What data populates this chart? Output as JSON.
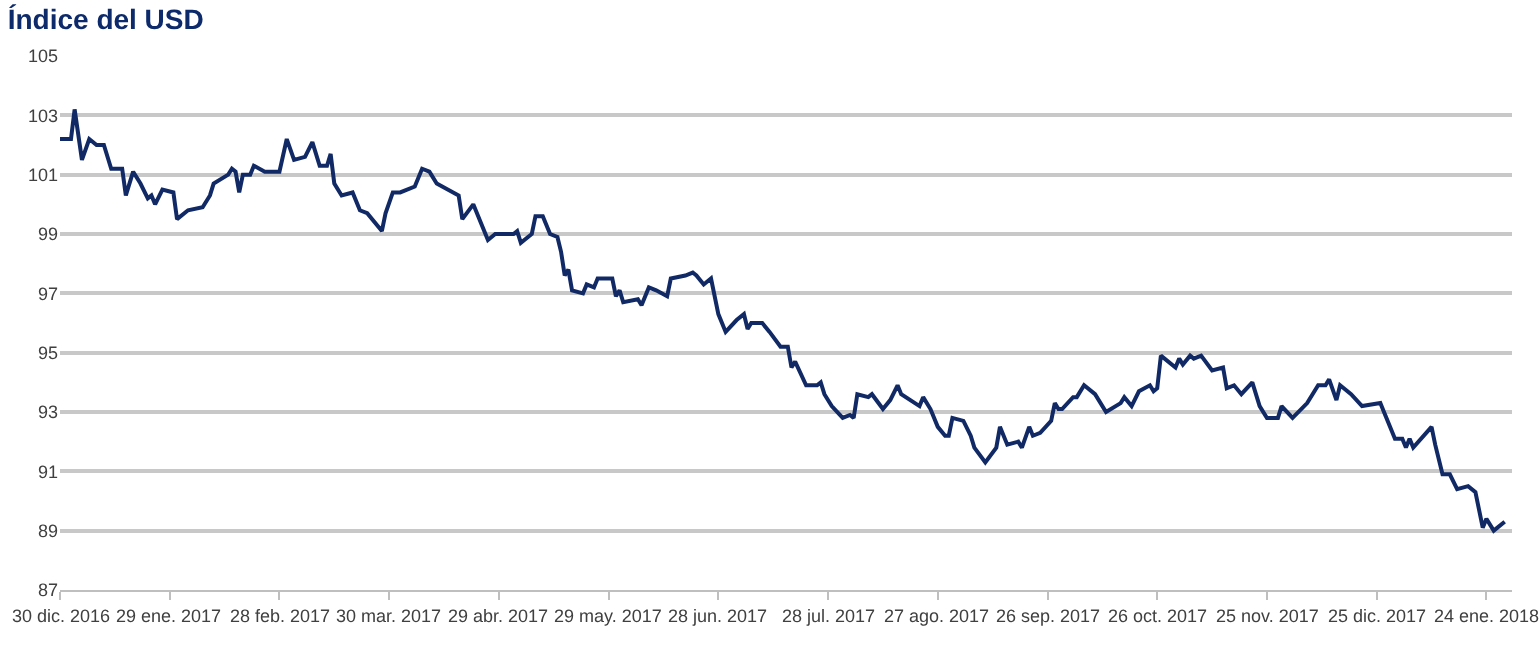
{
  "chart_data": {
    "type": "line",
    "title": "Índice del USD",
    "x": [
      "2016-12-30",
      "2017-01-02",
      "2017-01-03",
      "2017-01-05",
      "2017-01-07",
      "2017-01-09",
      "2017-01-11",
      "2017-01-13",
      "2017-01-16",
      "2017-01-17",
      "2017-01-19",
      "2017-01-21",
      "2017-01-23",
      "2017-01-24",
      "2017-01-25",
      "2017-01-27",
      "2017-01-30",
      "2017-01-31",
      "2017-02-03",
      "2017-02-07",
      "2017-02-09",
      "2017-02-10",
      "2017-02-14",
      "2017-02-15",
      "2017-02-16",
      "2017-02-17",
      "2017-02-18",
      "2017-02-20",
      "2017-02-21",
      "2017-02-24",
      "2017-02-28",
      "2017-03-02",
      "2017-03-04",
      "2017-03-07",
      "2017-03-09",
      "2017-03-11",
      "2017-03-13",
      "2017-03-14",
      "2017-03-15",
      "2017-03-17",
      "2017-03-20",
      "2017-03-22",
      "2017-03-24",
      "2017-03-28",
      "2017-03-29",
      "2017-03-31",
      "2017-04-02",
      "2017-04-06",
      "2017-04-08",
      "2017-04-10",
      "2017-04-12",
      "2017-04-15",
      "2017-04-18",
      "2017-04-19",
      "2017-04-22",
      "2017-04-26",
      "2017-04-28",
      "2017-05-03",
      "2017-05-04",
      "2017-05-05",
      "2017-05-08",
      "2017-05-09",
      "2017-05-11",
      "2017-05-13",
      "2017-05-15",
      "2017-05-16",
      "2017-05-17",
      "2017-05-18",
      "2017-05-19",
      "2017-05-22",
      "2017-05-23",
      "2017-05-25",
      "2017-05-26",
      "2017-05-30",
      "2017-05-31",
      "2017-06-01",
      "2017-06-02",
      "2017-06-06",
      "2017-06-07",
      "2017-06-09",
      "2017-06-11",
      "2017-06-14",
      "2017-06-15",
      "2017-06-19",
      "2017-06-21",
      "2017-06-22",
      "2017-06-24",
      "2017-06-26",
      "2017-06-28",
      "2017-06-30",
      "2017-07-03",
      "2017-07-05",
      "2017-07-06",
      "2017-07-07",
      "2017-07-10",
      "2017-07-12",
      "2017-07-15",
      "2017-07-17",
      "2017-07-18",
      "2017-07-19",
      "2017-07-22",
      "2017-07-25",
      "2017-07-26",
      "2017-07-27",
      "2017-07-29",
      "2017-08-01",
      "2017-08-03",
      "2017-08-04",
      "2017-08-05",
      "2017-08-08",
      "2017-08-09",
      "2017-08-12",
      "2017-08-14",
      "2017-08-16",
      "2017-08-17",
      "2017-08-22",
      "2017-08-23",
      "2017-08-25",
      "2017-08-27",
      "2017-08-29",
      "2017-08-30",
      "2017-08-31",
      "2017-09-03",
      "2017-09-05",
      "2017-09-06",
      "2017-09-09",
      "2017-09-12",
      "2017-09-13",
      "2017-09-15",
      "2017-09-18",
      "2017-09-19",
      "2017-09-21",
      "2017-09-22",
      "2017-09-24",
      "2017-09-27",
      "2017-09-28",
      "2017-09-29",
      "2017-09-30",
      "2017-10-03",
      "2017-10-04",
      "2017-10-06",
      "2017-10-09",
      "2017-10-12",
      "2017-10-16",
      "2017-10-17",
      "2017-10-19",
      "2017-10-21",
      "2017-10-24",
      "2017-10-25",
      "2017-10-26",
      "2017-10-27",
      "2017-10-31",
      "2017-11-01",
      "2017-11-02",
      "2017-11-04",
      "2017-11-05",
      "2017-11-07",
      "2017-11-10",
      "2017-11-13",
      "2017-11-14",
      "2017-11-16",
      "2017-11-18",
      "2017-11-21",
      "2017-11-23",
      "2017-11-25",
      "2017-11-28",
      "2017-11-29",
      "2017-12-02",
      "2017-12-06",
      "2017-12-09",
      "2017-12-11",
      "2017-12-12",
      "2017-12-14",
      "2017-12-15",
      "2017-12-18",
      "2017-12-21",
      "2017-12-26",
      "2017-12-27",
      "2017-12-30",
      "2018-01-01",
      "2018-01-02",
      "2018-01-03",
      "2018-01-04",
      "2018-01-09",
      "2018-01-10",
      "2018-01-12",
      "2018-01-14",
      "2018-01-16",
      "2018-01-19",
      "2018-01-21",
      "2018-01-23",
      "2018-01-24",
      "2018-01-26",
      "2018-01-29"
    ],
    "series": [
      {
        "color": "#112a66",
        "values": [
          102.2,
          102.2,
          103.2,
          101.5,
          102.2,
          102.0,
          102.0,
          101.2,
          101.2,
          100.3,
          101.1,
          100.7,
          100.2,
          100.3,
          100.0,
          100.5,
          100.4,
          99.5,
          99.8,
          99.9,
          100.3,
          100.7,
          101.0,
          101.2,
          101.1,
          100.4,
          101.0,
          101.0,
          101.3,
          101.1,
          101.1,
          102.2,
          101.5,
          101.6,
          102.1,
          101.3,
          101.3,
          101.7,
          100.7,
          100.3,
          100.4,
          99.8,
          99.7,
          99.1,
          99.7,
          100.4,
          100.4,
          100.6,
          101.2,
          101.1,
          100.7,
          100.5,
          100.3,
          99.5,
          100.0,
          98.8,
          99.0,
          99.0,
          99.1,
          98.7,
          99.0,
          99.6,
          99.6,
          99.0,
          98.9,
          98.4,
          97.6,
          97.8,
          97.1,
          97.0,
          97.3,
          97.2,
          97.5,
          97.5,
          96.9,
          97.1,
          96.7,
          96.8,
          96.6,
          97.2,
          97.1,
          96.9,
          97.5,
          97.6,
          97.7,
          97.6,
          97.3,
          97.5,
          96.3,
          95.7,
          96.1,
          96.3,
          95.8,
          96.0,
          96.0,
          95.7,
          95.2,
          95.2,
          94.5,
          94.7,
          93.9,
          93.9,
          94.0,
          93.6,
          93.2,
          92.8,
          92.9,
          92.8,
          93.6,
          93.5,
          93.6,
          93.1,
          93.4,
          93.9,
          93.6,
          93.2,
          93.5,
          93.1,
          92.5,
          92.2,
          92.2,
          92.8,
          92.7,
          92.2,
          91.8,
          91.3,
          91.8,
          92.5,
          91.9,
          92.0,
          91.8,
          92.5,
          92.2,
          92.3,
          92.7,
          93.3,
          93.1,
          93.1,
          93.5,
          93.5,
          93.9,
          93.6,
          93.0,
          93.3,
          93.5,
          93.2,
          93.7,
          93.9,
          93.7,
          93.8,
          94.9,
          94.5,
          94.8,
          94.6,
          94.9,
          94.8,
          94.9,
          94.4,
          94.5,
          93.8,
          93.9,
          93.6,
          94.0,
          93.2,
          92.8,
          92.8,
          93.2,
          92.8,
          93.3,
          93.9,
          93.9,
          94.1,
          93.4,
          93.9,
          93.6,
          93.2,
          93.3,
          93.0,
          92.1,
          92.1,
          91.8,
          92.1,
          91.8,
          92.5,
          91.9,
          90.9,
          90.9,
          90.4,
          90.5,
          90.3,
          89.1,
          89.4,
          89.0,
          89.3
        ]
      }
    ],
    "ylim": [
      87,
      105
    ],
    "yticks": [
      87,
      89,
      91,
      93,
      95,
      97,
      99,
      101,
      103,
      105
    ],
    "xlim": [
      "2016-12-30",
      "2018-01-31"
    ],
    "xticks": [
      {
        "value": "2016-12-30",
        "label": "30 dic. 2016"
      },
      {
        "value": "2017-01-29",
        "label": "29 ene. 2017"
      },
      {
        "value": "2017-02-28",
        "label": "28 feb. 2017"
      },
      {
        "value": "2017-03-30",
        "label": "30 mar. 2017"
      },
      {
        "value": "2017-04-29",
        "label": "29 abr. 2017"
      },
      {
        "value": "2017-05-29",
        "label": "29 may. 2017"
      },
      {
        "value": "2017-06-28",
        "label": "28 jun. 2017"
      },
      {
        "value": "2017-07-28",
        "label": "28 jul. 2017"
      },
      {
        "value": "2017-08-27",
        "label": "27 ago. 2017"
      },
      {
        "value": "2017-09-26",
        "label": "26 sep. 2017"
      },
      {
        "value": "2017-10-26",
        "label": "26 oct. 2017"
      },
      {
        "value": "2017-11-25",
        "label": "25 nov. 2017"
      },
      {
        "value": "2017-12-25",
        "label": "25 dic. 2017"
      },
      {
        "value": "2018-01-24",
        "label": "24 ene. 2018"
      }
    ],
    "grid": "y",
    "marker": "none",
    "line_style": "solid"
  }
}
